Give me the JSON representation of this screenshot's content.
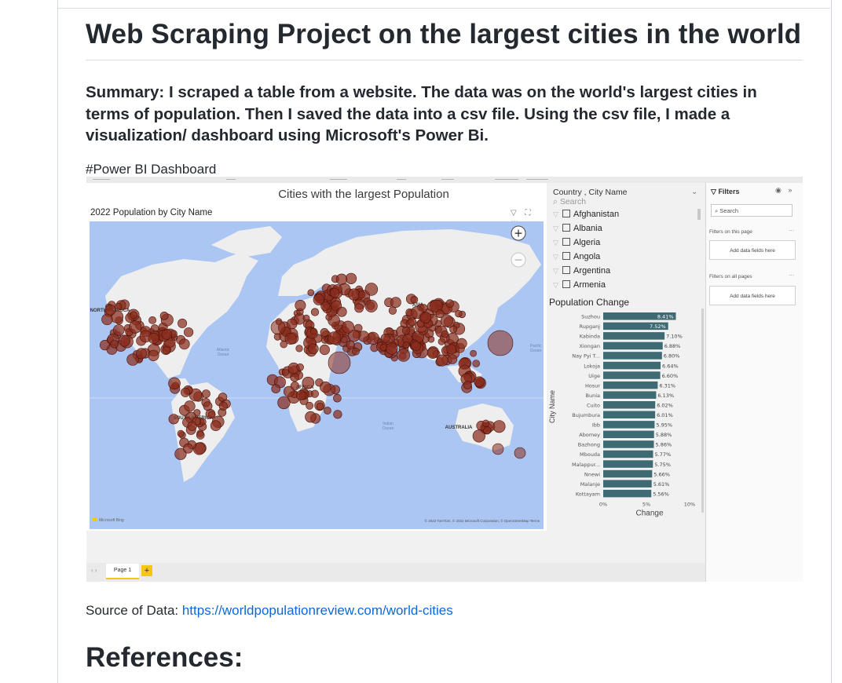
{
  "readme": {
    "title": "Web Scraping Project on the largest cities in the world",
    "summary": "Summary: I scraped a table from a website. The data was on the world's largest cities in terms of population. Then I saved the data into a csv file. Using the csv file, I made a visualization/ dashboard using Microsoft's Power Bi.",
    "dashboard_heading": "#Power BI Dashboard",
    "source_label": "Source of Data: ",
    "source_link": "https://worldpopulationreview.com/world-cities",
    "references_heading": "References:"
  },
  "dashboard": {
    "main_title": "Cities with the largest Population",
    "map": {
      "subtitle": "2022 Population by City Name",
      "zoom_in": "+",
      "zoom_out": "−",
      "labels": [
        "NORTH AMERICA",
        "ASIA",
        "AFRICA",
        "SOUTH AMERICA",
        "AUSTRALIA",
        "Atlantic Ocean",
        "Indian Ocean",
        "Pacific Ocean"
      ],
      "attribution": "© 2022 TomTom, © 2022 Microsoft Corporation, © OpenStreetMap  Terms",
      "logo": "Microsoft Bing",
      "bubble_color": "#8b2e1f",
      "ocean_color": "#abc6f2",
      "land_color": "#eeeeee"
    },
    "slicer": {
      "title": "Country , City Name",
      "search_placeholder": "Search",
      "items": [
        "Afghanistan",
        "Albania",
        "Algeria",
        "Angola",
        "Argentina",
        "Armenia"
      ]
    },
    "filters": {
      "title": "Filters",
      "search_placeholder": "Search",
      "on_this_page": "Filters on this page",
      "on_all_pages": "Filters on all pages",
      "add_fields": "Add data fields here"
    },
    "page_tab": "Page 1",
    "add_page": "+"
  },
  "chart_data": {
    "type": "bar",
    "orientation": "horizontal",
    "title": "Population Change",
    "xlabel": "Change",
    "ylabel": "City Name",
    "xlim": [
      0,
      10
    ],
    "xticks": [
      "0%",
      "5%",
      "10%"
    ],
    "bar_color": "#3e6a73",
    "categories": [
      "Suzhou",
      "Rupganj",
      "Kabinda",
      "Xiongan",
      "Nay Pyi T...",
      "Lokoja",
      "Uige",
      "Hosur",
      "Bunia",
      "Cuito",
      "Bujumbura",
      "Ibb",
      "Abomey",
      "Bazhong",
      "Mbouda",
      "Malappur...",
      "Nnewi",
      "Malanje",
      "Kottayam"
    ],
    "values": [
      8.41,
      7.52,
      7.1,
      6.88,
      6.8,
      6.64,
      6.6,
      6.31,
      6.13,
      6.02,
      6.01,
      5.95,
      5.88,
      5.86,
      5.77,
      5.75,
      5.66,
      5.61,
      5.56
    ],
    "data_labels": [
      "8.41%",
      "7.52%",
      "7.10%",
      "6.88%",
      "6.80%",
      "6.64%",
      "6.60%",
      "6.31%",
      "6.13%",
      "6.02%",
      "6.01%",
      "5.95%",
      "5.88%",
      "5.86%",
      "5.77%",
      "5.75%",
      "5.66%",
      "5.61%",
      "5.56%"
    ]
  }
}
